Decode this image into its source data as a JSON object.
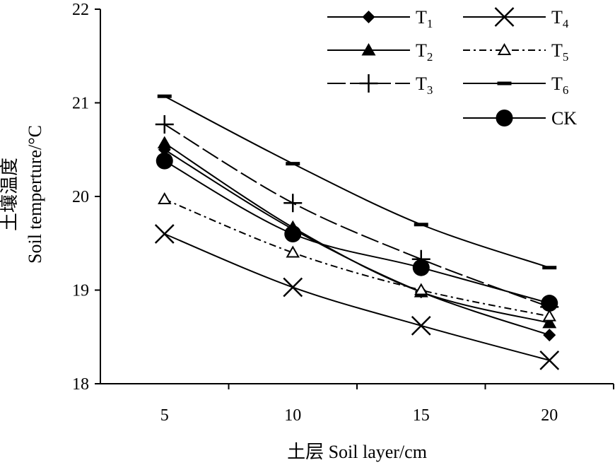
{
  "chart_data": {
    "type": "line",
    "xlabel": "土层 Soil layer/cm",
    "ylabel_cn": "土壤温度",
    "ylabel_en": "Soil  temperture/°C",
    "x": [
      5,
      10,
      15,
      20
    ],
    "xticks": [
      "5",
      "10",
      "15",
      "20"
    ],
    "ylim": [
      18,
      22
    ],
    "yticks": [
      18,
      19,
      20,
      21,
      22
    ],
    "grid": false,
    "legend_position": "top-right",
    "series": [
      {
        "name": "T",
        "sub": "1",
        "marker": "diamond",
        "dash": "solid",
        "values": [
          20.5,
          19.65,
          18.98,
          18.52
        ]
      },
      {
        "name": "T",
        "sub": "2",
        "marker": "triangle",
        "dash": "solid",
        "values": [
          20.57,
          19.67,
          18.98,
          18.65
        ]
      },
      {
        "name": "T",
        "sub": "3",
        "marker": "plus",
        "dash": "longdash",
        "values": [
          20.77,
          19.93,
          19.33,
          18.82
        ]
      },
      {
        "name": "T",
        "sub": "4",
        "marker": "x",
        "dash": "solid",
        "values": [
          19.6,
          19.03,
          18.62,
          18.25
        ]
      },
      {
        "name": "T",
        "sub": "5",
        "marker": "open-triangle",
        "dash": "dashdot",
        "values": [
          19.97,
          19.4,
          19.0,
          18.72
        ]
      },
      {
        "name": "T",
        "sub": "6",
        "marker": "dash",
        "dash": "solid",
        "values": [
          21.07,
          20.35,
          19.7,
          19.24
        ]
      },
      {
        "name": "CK",
        "sub": "",
        "marker": "circle",
        "dash": "solid",
        "values": [
          20.38,
          19.6,
          19.24,
          18.86
        ]
      }
    ]
  }
}
